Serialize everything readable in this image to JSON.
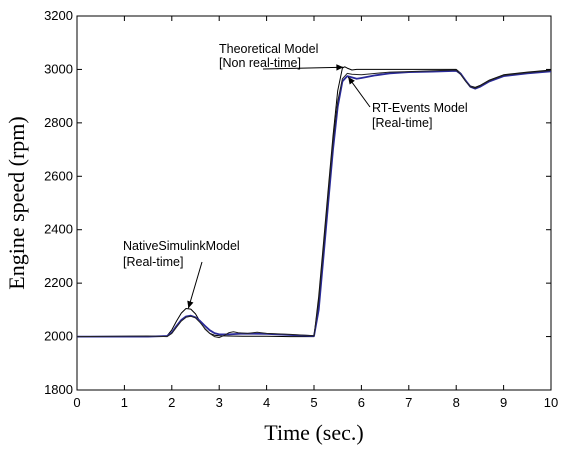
{
  "chart_data": {
    "type": "line",
    "title": "",
    "xlabel": "Time (sec.)",
    "ylabel": "Engine speed (rpm)",
    "xlim": [
      0,
      10
    ],
    "ylim": [
      1800,
      3200
    ],
    "xticks": [
      0,
      1,
      2,
      3,
      4,
      5,
      6,
      7,
      8,
      9,
      10
    ],
    "yticks": [
      1800,
      2000,
      2200,
      2400,
      2600,
      2800,
      3000,
      3200
    ],
    "grid": false,
    "legend": "none",
    "series": [
      {
        "key": "theoretical",
        "color": "#000000",
        "x": [
          0,
          1.5,
          1.9,
          2.0,
          2.1,
          2.2,
          2.3,
          2.4,
          2.5,
          2.6,
          2.7,
          2.8,
          2.9,
          3.0,
          3.2,
          3.5,
          4.0,
          4.5,
          5.0,
          5.1,
          5.2,
          5.3,
          5.4,
          5.5,
          5.6,
          5.65,
          5.7,
          5.8,
          5.9,
          6.0,
          6.5,
          7.0,
          7.5,
          8.0,
          8.1,
          8.2,
          8.3,
          8.4,
          8.5,
          8.7,
          9.0,
          9.5,
          10.0
        ],
        "y": [
          2000,
          2000,
          2003,
          2025,
          2058,
          2088,
          2105,
          2103,
          2085,
          2055,
          2028,
          2012,
          2005,
          2003,
          2002,
          2001,
          2001,
          2000,
          2000,
          2150,
          2350,
          2550,
          2750,
          2920,
          3005,
          3010,
          3005,
          2998,
          3000,
          3000,
          3000,
          3000,
          3000,
          3000,
          2985,
          2958,
          2938,
          2933,
          2940,
          2960,
          2980,
          2990,
          2998
        ]
      },
      {
        "key": "rt-events",
        "color": "#2a2a9a",
        "x": [
          0,
          1.5,
          1.9,
          2.0,
          2.1,
          2.2,
          2.3,
          2.4,
          2.5,
          2.6,
          2.7,
          2.8,
          2.9,
          3.0,
          3.2,
          3.5,
          4.0,
          4.5,
          5.0,
          5.1,
          5.2,
          5.3,
          5.4,
          5.5,
          5.6,
          5.7,
          5.8,
          5.9,
          6.0,
          6.3,
          6.6,
          7.0,
          7.5,
          8.0,
          8.1,
          8.2,
          8.3,
          8.4,
          8.5,
          8.7,
          9.0,
          9.5,
          10.0
        ],
        "y": [
          2000,
          2000,
          2002,
          2015,
          2040,
          2062,
          2075,
          2078,
          2072,
          2058,
          2040,
          2024,
          2013,
          2008,
          2008,
          2011,
          2010,
          2006,
          2002,
          2100,
          2300,
          2500,
          2700,
          2860,
          2955,
          2975,
          2970,
          2965,
          2968,
          2978,
          2985,
          2990,
          2992,
          2995,
          2983,
          2958,
          2935,
          2928,
          2935,
          2955,
          2975,
          2985,
          2993
        ]
      },
      {
        "key": "native-simulink",
        "color": "#222222",
        "x": [
          0,
          1.5,
          1.9,
          2.0,
          2.1,
          2.2,
          2.3,
          2.4,
          2.5,
          2.6,
          2.7,
          2.8,
          2.9,
          3.0,
          3.1,
          3.2,
          3.3,
          3.4,
          3.6,
          3.8,
          4.0,
          4.5,
          5.0,
          5.1,
          5.2,
          5.3,
          5.4,
          5.5,
          5.6,
          5.7,
          5.8,
          6.0,
          6.3,
          6.6,
          7.0,
          7.5,
          8.0,
          8.1,
          8.2,
          8.3,
          8.4,
          8.5,
          8.7,
          9.0,
          9.5,
          10.0
        ],
        "y": [
          2000,
          2002,
          2000,
          2012,
          2035,
          2058,
          2072,
          2076,
          2070,
          2052,
          2030,
          2012,
          2000,
          1996,
          2004,
          2014,
          2018,
          2014,
          2012,
          2016,
          2012,
          2008,
          2003,
          2130,
          2330,
          2530,
          2730,
          2880,
          2965,
          2985,
          2982,
          2980,
          2985,
          2990,
          2992,
          2995,
          2998,
          2980,
          2955,
          2935,
          2930,
          2938,
          2958,
          2978,
          2988,
          2996
        ]
      }
    ],
    "annotations": [
      {
        "key": "theoretical",
        "lines": [
          "Theoretical Model",
          "[Non real-time]"
        ],
        "arrow_to": {
          "x": 5.62,
          "y": 3008
        }
      },
      {
        "key": "rt-events",
        "lines": [
          "RT-Events Model",
          "[Real-time]"
        ],
        "arrow_to": {
          "x": 5.72,
          "y": 2972
        }
      },
      {
        "key": "native-simulink",
        "lines": [
          "NativeSimulinkModel",
          "[Real-time]"
        ],
        "arrow_to": {
          "x": 2.35,
          "y": 2106
        }
      }
    ]
  }
}
